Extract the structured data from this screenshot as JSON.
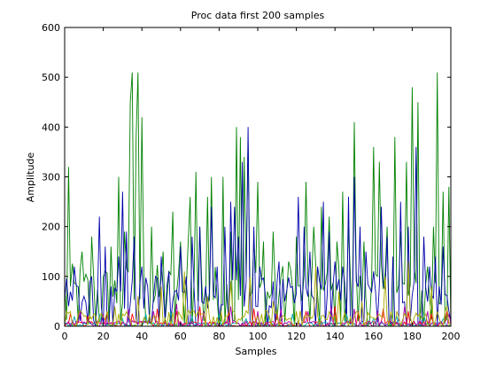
{
  "chart_data": {
    "type": "line",
    "title": "Proc data first 200 samples",
    "xlabel": "Samples",
    "ylabel": "Amplitude",
    "xlim": [
      0,
      200
    ],
    "ylim": [
      0,
      600
    ],
    "xticks": [
      0,
      20,
      40,
      60,
      80,
      100,
      120,
      140,
      160,
      180,
      200
    ],
    "yticks": [
      0,
      100,
      200,
      300,
      400,
      500,
      600
    ],
    "grid": false,
    "legend": "none",
    "series": [
      {
        "color": "#008000",
        "peaks": [
          [
            2,
            320
          ],
          [
            9,
            150
          ],
          [
            14,
            180
          ],
          [
            24,
            160
          ],
          [
            28,
            300
          ],
          [
            31,
            190
          ],
          [
            34,
            450
          ],
          [
            35,
            510
          ],
          [
            37,
            380
          ],
          [
            38,
            510
          ],
          [
            40,
            420
          ],
          [
            45,
            200
          ],
          [
            51,
            150
          ],
          [
            56,
            230
          ],
          [
            60,
            170
          ],
          [
            64,
            170
          ],
          [
            65,
            260
          ],
          [
            68,
            310
          ],
          [
            70,
            200
          ],
          [
            74,
            260
          ],
          [
            76,
            300
          ],
          [
            82,
            300
          ],
          [
            86,
            190
          ],
          [
            89,
            400
          ],
          [
            91,
            380
          ],
          [
            93,
            340
          ],
          [
            95,
            370
          ],
          [
            98,
            170
          ],
          [
            100,
            290
          ],
          [
            103,
            170
          ],
          [
            108,
            190
          ],
          [
            112,
            100
          ],
          [
            116,
            130
          ],
          [
            120,
            180
          ],
          [
            125,
            290
          ],
          [
            129,
            200
          ],
          [
            133,
            240
          ],
          [
            137,
            220
          ],
          [
            141,
            170
          ],
          [
            144,
            270
          ],
          [
            147,
            200
          ],
          [
            150,
            410
          ],
          [
            155,
            170
          ],
          [
            160,
            360
          ],
          [
            163,
            330
          ],
          [
            167,
            200
          ],
          [
            171,
            380
          ],
          [
            174,
            190
          ],
          [
            177,
            330
          ],
          [
            180,
            480
          ],
          [
            183,
            450
          ],
          [
            188,
            120
          ],
          [
            191,
            200
          ],
          [
            193,
            510
          ],
          [
            196,
            270
          ],
          [
            199,
            280
          ]
        ]
      },
      {
        "color": "#0000aa",
        "peaks": [
          [
            2,
            40
          ],
          [
            5,
            120
          ],
          [
            10,
            60
          ],
          [
            14,
            100
          ],
          [
            18,
            220
          ],
          [
            21,
            160
          ],
          [
            24,
            80
          ],
          [
            28,
            140
          ],
          [
            30,
            270
          ],
          [
            32,
            190
          ],
          [
            36,
            180
          ],
          [
            40,
            120
          ],
          [
            43,
            80
          ],
          [
            47,
            100
          ],
          [
            50,
            140
          ],
          [
            54,
            110
          ],
          [
            57,
            70
          ],
          [
            60,
            160
          ],
          [
            63,
            100
          ],
          [
            66,
            180
          ],
          [
            70,
            200
          ],
          [
            73,
            80
          ],
          [
            76,
            240
          ],
          [
            79,
            120
          ],
          [
            83,
            200
          ],
          [
            86,
            250
          ],
          [
            88,
            240
          ],
          [
            90,
            180
          ],
          [
            92,
            330
          ],
          [
            95,
            400
          ],
          [
            98,
            200
          ],
          [
            101,
            120
          ],
          [
            104,
            60
          ],
          [
            108,
            90
          ],
          [
            111,
            130
          ],
          [
            114,
            50
          ],
          [
            118,
            80
          ],
          [
            121,
            260
          ],
          [
            124,
            200
          ],
          [
            127,
            150
          ],
          [
            131,
            120
          ],
          [
            134,
            250
          ],
          [
            137,
            190
          ],
          [
            140,
            130
          ],
          [
            144,
            120
          ],
          [
            147,
            260
          ],
          [
            150,
            300
          ],
          [
            153,
            200
          ],
          [
            156,
            150
          ],
          [
            160,
            110
          ],
          [
            164,
            240
          ],
          [
            167,
            180
          ],
          [
            170,
            140
          ],
          [
            174,
            250
          ],
          [
            178,
            200
          ],
          [
            182,
            360
          ],
          [
            186,
            180
          ],
          [
            189,
            120
          ],
          [
            192,
            140
          ],
          [
            196,
            160
          ],
          [
            199,
            30
          ]
        ]
      },
      {
        "color": "#ff0000",
        "peaks": [
          [
            3,
            25
          ],
          [
            12,
            20
          ],
          [
            22,
            30
          ],
          [
            35,
            25
          ],
          [
            48,
            35
          ],
          [
            58,
            30
          ],
          [
            70,
            40
          ],
          [
            85,
            30
          ],
          [
            98,
            35
          ],
          [
            110,
            25
          ],
          [
            125,
            30
          ],
          [
            140,
            40
          ],
          [
            152,
            30
          ],
          [
            165,
            35
          ],
          [
            178,
            30
          ],
          [
            190,
            25
          ],
          [
            198,
            30
          ]
        ]
      },
      {
        "color": "#00aaaa",
        "peaks": [
          [
            5,
            20
          ],
          [
            18,
            25
          ],
          [
            30,
            15
          ],
          [
            42,
            25
          ],
          [
            55,
            30
          ],
          [
            66,
            20
          ],
          [
            80,
            25
          ],
          [
            94,
            15
          ],
          [
            106,
            20
          ],
          [
            118,
            25
          ],
          [
            132,
            20
          ],
          [
            146,
            25
          ],
          [
            160,
            15
          ],
          [
            172,
            20
          ],
          [
            186,
            25
          ],
          [
            196,
            15
          ]
        ]
      },
      {
        "color": "#aa00aa",
        "peaks": [
          [
            8,
            30
          ],
          [
            20,
            25
          ],
          [
            33,
            35
          ],
          [
            46,
            30
          ],
          [
            58,
            45
          ],
          [
            72,
            30
          ],
          [
            86,
            40
          ],
          [
            100,
            30
          ],
          [
            112,
            35
          ],
          [
            126,
            30
          ],
          [
            138,
            40
          ],
          [
            150,
            35
          ],
          [
            162,
            30
          ],
          [
            176,
            40
          ],
          [
            188,
            30
          ],
          [
            199,
            25
          ]
        ]
      },
      {
        "color": "#aaaa00",
        "peaks": [
          [
            10,
            20
          ],
          [
            26,
            40
          ],
          [
            38,
            60
          ],
          [
            50,
            80
          ],
          [
            62,
            110
          ],
          [
            74,
            60
          ],
          [
            86,
            90
          ],
          [
            96,
            100
          ],
          [
            108,
            50
          ],
          [
            120,
            30
          ],
          [
            130,
            120
          ],
          [
            142,
            70
          ],
          [
            154,
            50
          ],
          [
            166,
            100
          ],
          [
            178,
            130
          ],
          [
            190,
            80
          ],
          [
            198,
            40
          ]
        ]
      }
    ]
  }
}
